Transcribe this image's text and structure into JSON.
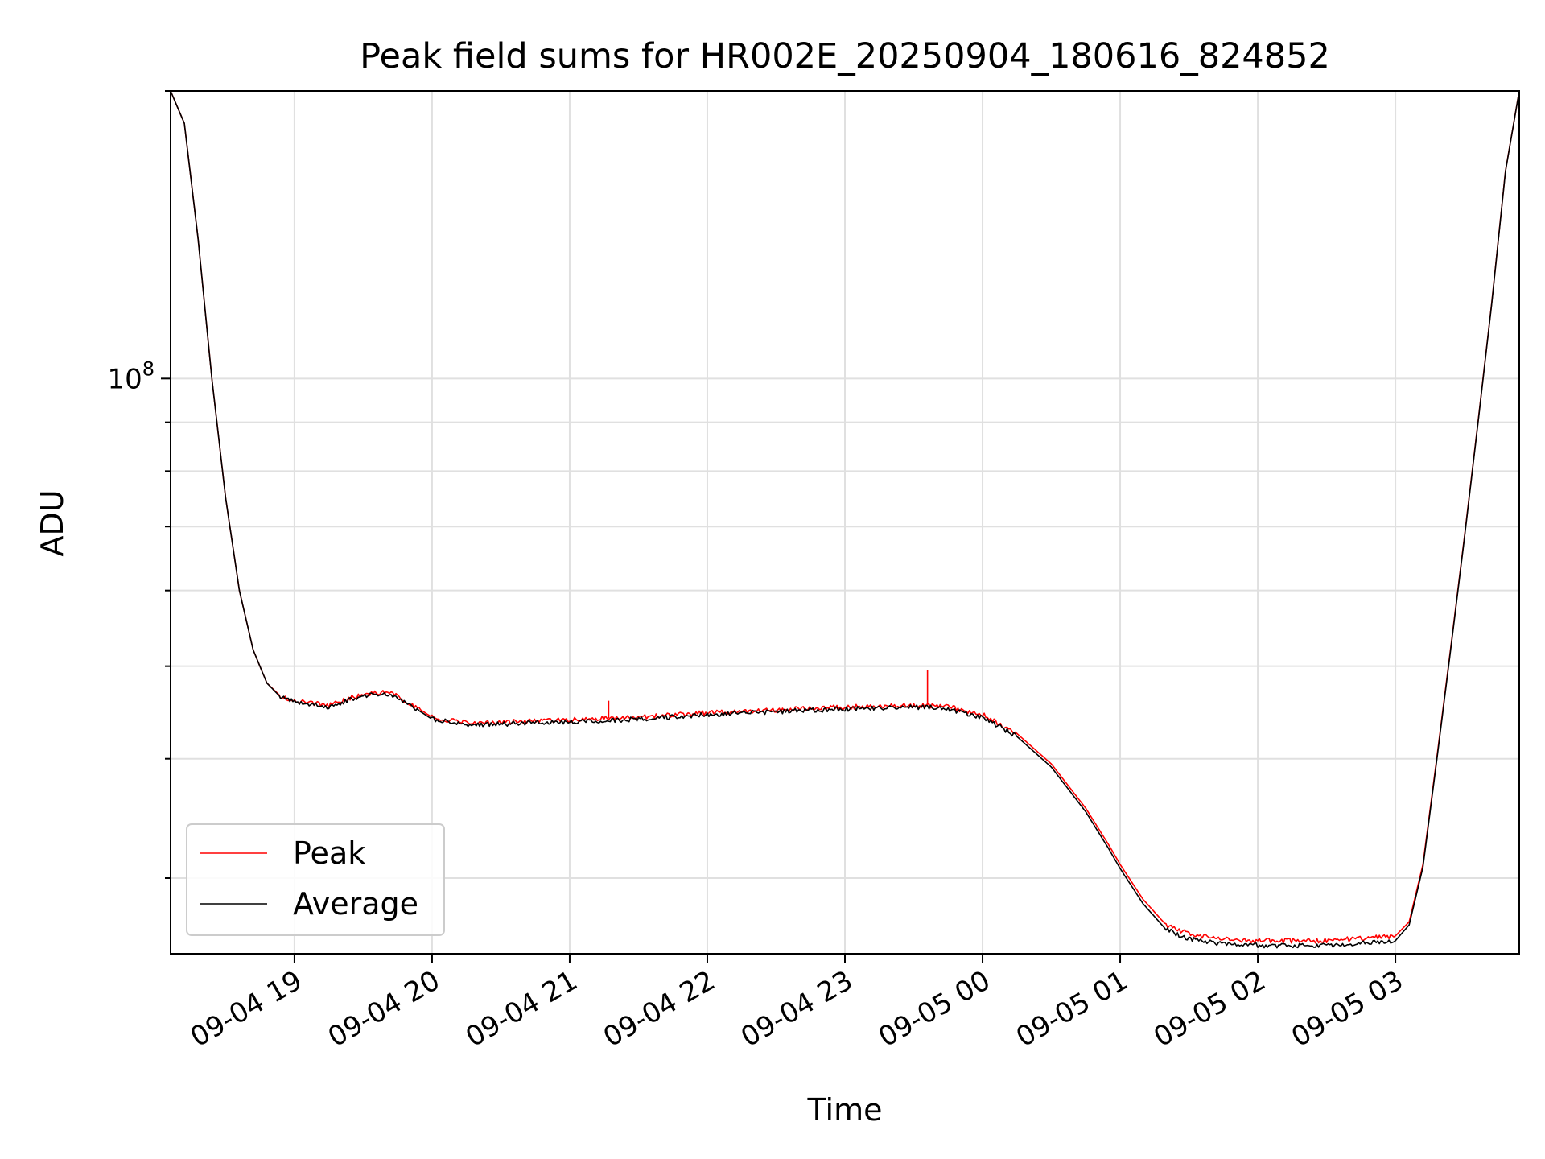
{
  "chart_data": {
    "type": "line",
    "title": "Peak field sums for HR002E_20250904_180616_824852",
    "xlabel": "Time",
    "ylabel": "ADU",
    "y_scale": "log",
    "grid": true,
    "legend_position": "lower-left",
    "xlim": [
      "2025-09-04 18:06",
      "2025-09-05 03:54"
    ],
    "ylim": [
      25000000,
      200000000
    ],
    "x_ticks": [
      {
        "value": "2025-09-04 19:00",
        "label": "09-04 19"
      },
      {
        "value": "2025-09-04 20:00",
        "label": "09-04 20"
      },
      {
        "value": "2025-09-04 21:00",
        "label": "09-04 21"
      },
      {
        "value": "2025-09-04 22:00",
        "label": "09-04 22"
      },
      {
        "value": "2025-09-04 23:00",
        "label": "09-04 23"
      },
      {
        "value": "2025-09-05 00:00",
        "label": "09-05 00"
      },
      {
        "value": "2025-09-05 01:00",
        "label": "09-05 01"
      },
      {
        "value": "2025-09-05 02:00",
        "label": "09-05 02"
      },
      {
        "value": "2025-09-05 03:00",
        "label": "09-05 03"
      }
    ],
    "y_major_ticks": [
      {
        "value": 100000000,
        "base": "10",
        "exponent": "8"
      }
    ],
    "y_minor_ticks": [
      30000000,
      40000000,
      50000000,
      60000000,
      70000000,
      80000000,
      90000000,
      200000000
    ],
    "series": [
      {
        "name": "Peak",
        "color": "#ff0000",
        "x": [
          "2025-09-04 18:06",
          "2025-09-04 18:12",
          "2025-09-04 18:18",
          "2025-09-04 18:24",
          "2025-09-04 18:30",
          "2025-09-04 18:36",
          "2025-09-04 18:42",
          "2025-09-04 18:48",
          "2025-09-04 18:54",
          "2025-09-04 19:00",
          "2025-09-04 19:15",
          "2025-09-04 19:30",
          "2025-09-04 19:40",
          "2025-09-04 19:45",
          "2025-09-04 19:55",
          "2025-09-04 20:00",
          "2025-09-04 20:15",
          "2025-09-04 20:30",
          "2025-09-04 21:00",
          "2025-09-04 21:17",
          "2025-09-04 21:30",
          "2025-09-04 22:00",
          "2025-09-04 22:30",
          "2025-09-04 23:00",
          "2025-09-04 23:30",
          "2025-09-04 23:36",
          "2025-09-04 23:45",
          "2025-09-05 00:00",
          "2025-09-05 00:15",
          "2025-09-05 00:30",
          "2025-09-05 00:45",
          "2025-09-05 00:55",
          "2025-09-05 01:00",
          "2025-09-05 01:10",
          "2025-09-05 01:20",
          "2025-09-05 01:30",
          "2025-09-05 01:45",
          "2025-09-05 02:00",
          "2025-09-05 02:30",
          "2025-09-05 03:00",
          "2025-09-05 03:06",
          "2025-09-05 03:12",
          "2025-09-05 03:18",
          "2025-09-05 03:24",
          "2025-09-05 03:30",
          "2025-09-05 03:36",
          "2025-09-05 03:42",
          "2025-09-05 03:48",
          "2025-09-05 03:54"
        ],
        "y": [
          200000000,
          185000000,
          140000000,
          100000000,
          75000000,
          60000000,
          52000000,
          48000000,
          46500000,
          46000000,
          45500000,
          46800000,
          47000000,
          46500000,
          45000000,
          44200000,
          43600000,
          43700000,
          43900000,
          44100000,
          44200000,
          44700000,
          45000000,
          45300000,
          45500000,
          45500000,
          45300000,
          44500000,
          42500000,
          39500000,
          35500000,
          32500000,
          31000000,
          28500000,
          26800000,
          26200000,
          25900000,
          25800000,
          25800000,
          26100000,
          27000000,
          31000000,
          40000000,
          52000000,
          68000000,
          90000000,
          120000000,
          165000000,
          200000000
        ],
        "annotations": [
          {
            "x": "2025-09-04 21:17",
            "y": 46000000
          },
          {
            "x": "2025-09-04 23:36",
            "y": 49500000
          }
        ]
      },
      {
        "name": "Average",
        "color": "#000000",
        "x": [
          "2025-09-04 18:06",
          "2025-09-04 18:12",
          "2025-09-04 18:18",
          "2025-09-04 18:24",
          "2025-09-04 18:30",
          "2025-09-04 18:36",
          "2025-09-04 18:42",
          "2025-09-04 18:48",
          "2025-09-04 18:54",
          "2025-09-04 19:00",
          "2025-09-04 19:15",
          "2025-09-04 19:30",
          "2025-09-04 19:40",
          "2025-09-04 19:45",
          "2025-09-04 19:55",
          "2025-09-04 20:00",
          "2025-09-04 20:15",
          "2025-09-04 20:30",
          "2025-09-04 21:00",
          "2025-09-04 21:17",
          "2025-09-04 21:30",
          "2025-09-04 22:00",
          "2025-09-04 22:30",
          "2025-09-04 23:00",
          "2025-09-04 23:30",
          "2025-09-04 23:36",
          "2025-09-04 23:45",
          "2025-09-05 00:00",
          "2025-09-05 00:15",
          "2025-09-05 00:30",
          "2025-09-05 00:45",
          "2025-09-05 00:55",
          "2025-09-05 01:00",
          "2025-09-05 01:10",
          "2025-09-05 01:20",
          "2025-09-05 01:30",
          "2025-09-05 01:45",
          "2025-09-05 02:00",
          "2025-09-05 02:30",
          "2025-09-05 03:00",
          "2025-09-05 03:06",
          "2025-09-05 03:12",
          "2025-09-05 03:18",
          "2025-09-05 03:24",
          "2025-09-05 03:30",
          "2025-09-05 03:36",
          "2025-09-05 03:42",
          "2025-09-05 03:48",
          "2025-09-05 03:54"
        ],
        "y": [
          200000000,
          185000000,
          140000000,
          100000000,
          75000000,
          60000000,
          52000000,
          48000000,
          46400000,
          45900000,
          45300000,
          46600000,
          46800000,
          46300000,
          44800000,
          44000000,
          43400000,
          43500000,
          43700000,
          43900000,
          44000000,
          44500000,
          44800000,
          45100000,
          45300000,
          45300000,
          45100000,
          44200000,
          42200000,
          39200000,
          35200000,
          32200000,
          30700000,
          28200000,
          26500000,
          25900000,
          25600000,
          25500000,
          25500000,
          25800000,
          26800000,
          30800000,
          39800000,
          51800000,
          67800000,
          89800000,
          119800000,
          164800000,
          200000000
        ]
      }
    ]
  }
}
